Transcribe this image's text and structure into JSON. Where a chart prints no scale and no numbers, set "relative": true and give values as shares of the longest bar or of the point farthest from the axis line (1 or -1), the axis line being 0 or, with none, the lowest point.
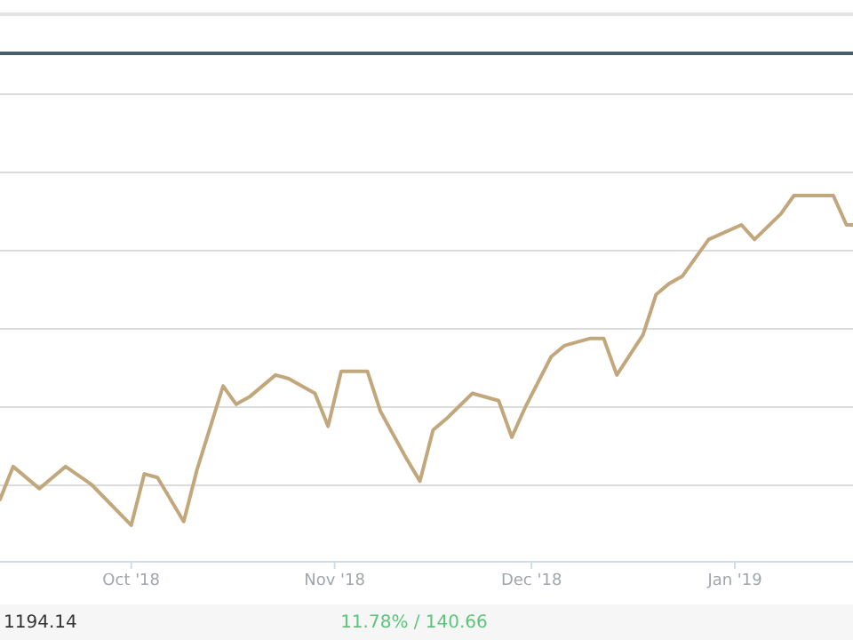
{
  "chart_data": {
    "type": "line",
    "relative": true,
    "grid": "y",
    "color": "#c2a77c",
    "x": [
      "2018-09-11",
      "2018-09-13",
      "2018-09-17",
      "2018-09-19",
      "2018-09-21",
      "2018-09-25",
      "2018-10-01",
      "2018-10-03",
      "2018-10-05",
      "2018-10-09",
      "2018-10-11",
      "2018-10-15",
      "2018-10-17",
      "2018-10-19",
      "2018-10-23",
      "2018-10-25",
      "2018-10-29",
      "2018-10-31",
      "2018-11-02",
      "2018-11-06",
      "2018-11-08",
      "2018-11-12",
      "2018-11-14",
      "2018-11-16",
      "2018-11-18",
      "2018-11-22",
      "2018-11-26",
      "2018-11-28",
      "2018-11-30",
      "2018-12-04",
      "2018-12-06",
      "2018-12-10",
      "2018-12-12",
      "2018-12-14",
      "2018-12-18",
      "2018-12-20",
      "2018-12-22",
      "2018-12-24",
      "2018-12-28",
      "2019-01-02",
      "2019-01-04",
      "2019-01-08",
      "2019-01-10",
      "2019-01-16",
      "2019-01-18",
      "2019-01-19"
    ],
    "values": [
      0.17,
      0.26,
      0.2,
      0.23,
      0.26,
      0.21,
      0.1,
      0.24,
      0.23,
      0.11,
      0.25,
      0.48,
      0.43,
      0.45,
      0.51,
      0.5,
      0.46,
      0.37,
      0.52,
      0.52,
      0.41,
      0.28,
      0.22,
      0.36,
      0.39,
      0.46,
      0.44,
      0.34,
      0.42,
      0.56,
      0.59,
      0.61,
      0.61,
      0.51,
      0.62,
      0.73,
      0.76,
      0.78,
      0.88,
      0.92,
      0.88,
      0.95,
      1,
      1,
      0.92,
      0.92
    ],
    "xlim": [
      "2018-09-11",
      "2019-01-19"
    ],
    "xticks": [
      {
        "value": "2018-10-01",
        "label": "Oct '18"
      },
      {
        "value": "2018-11-01",
        "label": "Nov '18"
      },
      {
        "value": "2018-12-01",
        "label": "Dec '18"
      },
      {
        "value": "2019-01-01",
        "label": "Jan '19"
      }
    ],
    "annotations": [
      "1194.14",
      "11.78% / 140.66"
    ]
  }
}
